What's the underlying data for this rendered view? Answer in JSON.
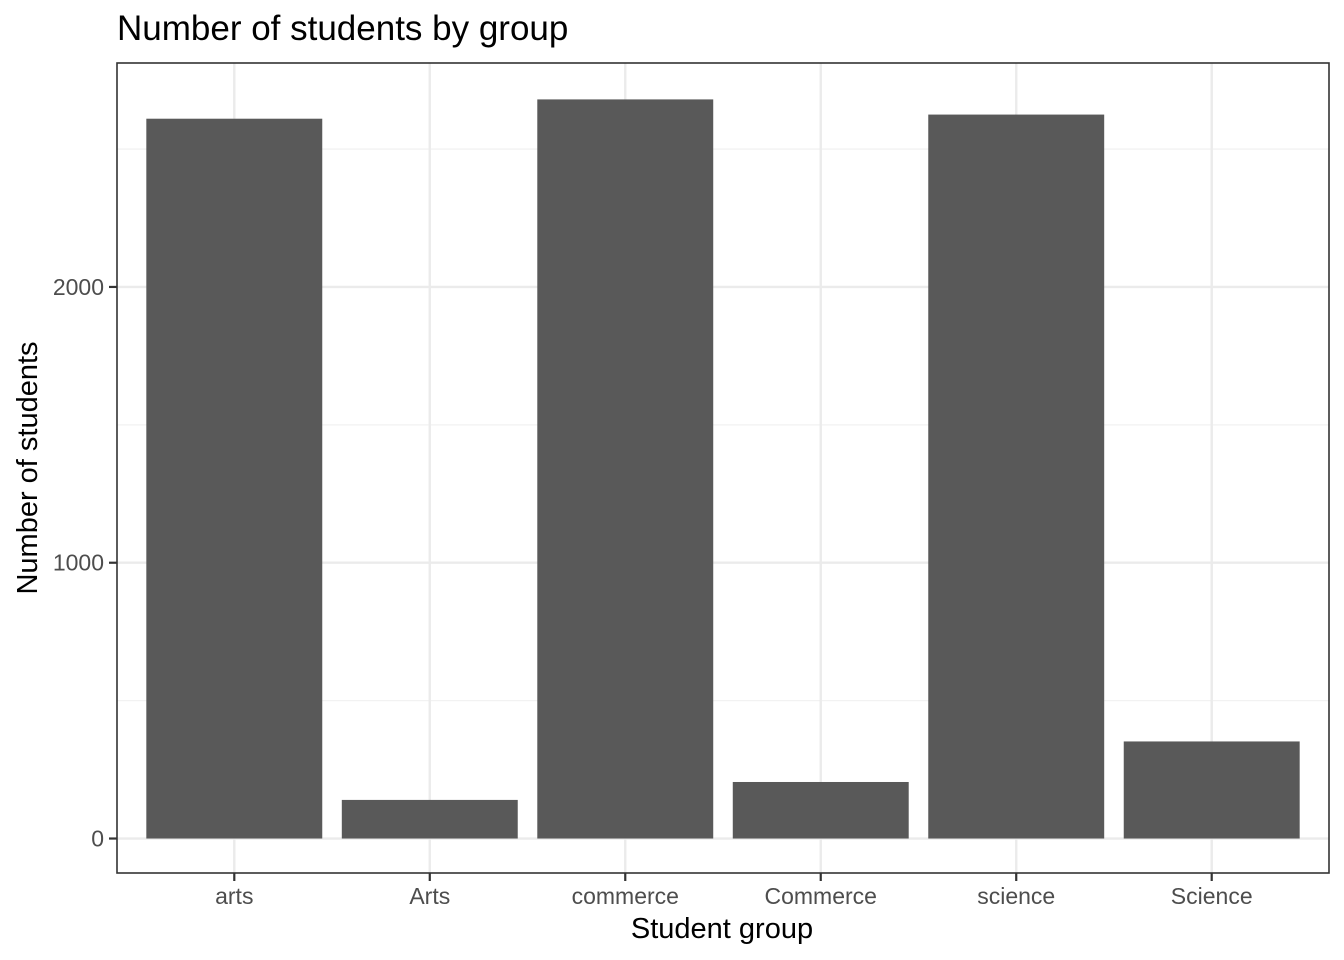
{
  "chart_data": {
    "type": "bar",
    "title": "Number of students by group",
    "xlabel": "Student group",
    "ylabel": "Number of students",
    "categories": [
      "arts",
      "Arts",
      "commerce",
      "Commerce",
      "science",
      "Science"
    ],
    "values": [
      2610,
      140,
      2680,
      205,
      2625,
      352
    ],
    "ylim": [
      -125,
      2812
    ],
    "yticks": [
      0,
      1000,
      2000
    ],
    "yticks_minor": [
      500,
      1500,
      2500
    ],
    "ytick_labels": [
      "0",
      "1000",
      "2000"
    ],
    "grid": true,
    "legend": "none",
    "colors": {
      "bar": "#595959",
      "panel_border": "#333333",
      "grid_major": "#ebebeb",
      "grid_minor": "#f2f2f2",
      "tick_text": "#4d4d4d"
    }
  }
}
